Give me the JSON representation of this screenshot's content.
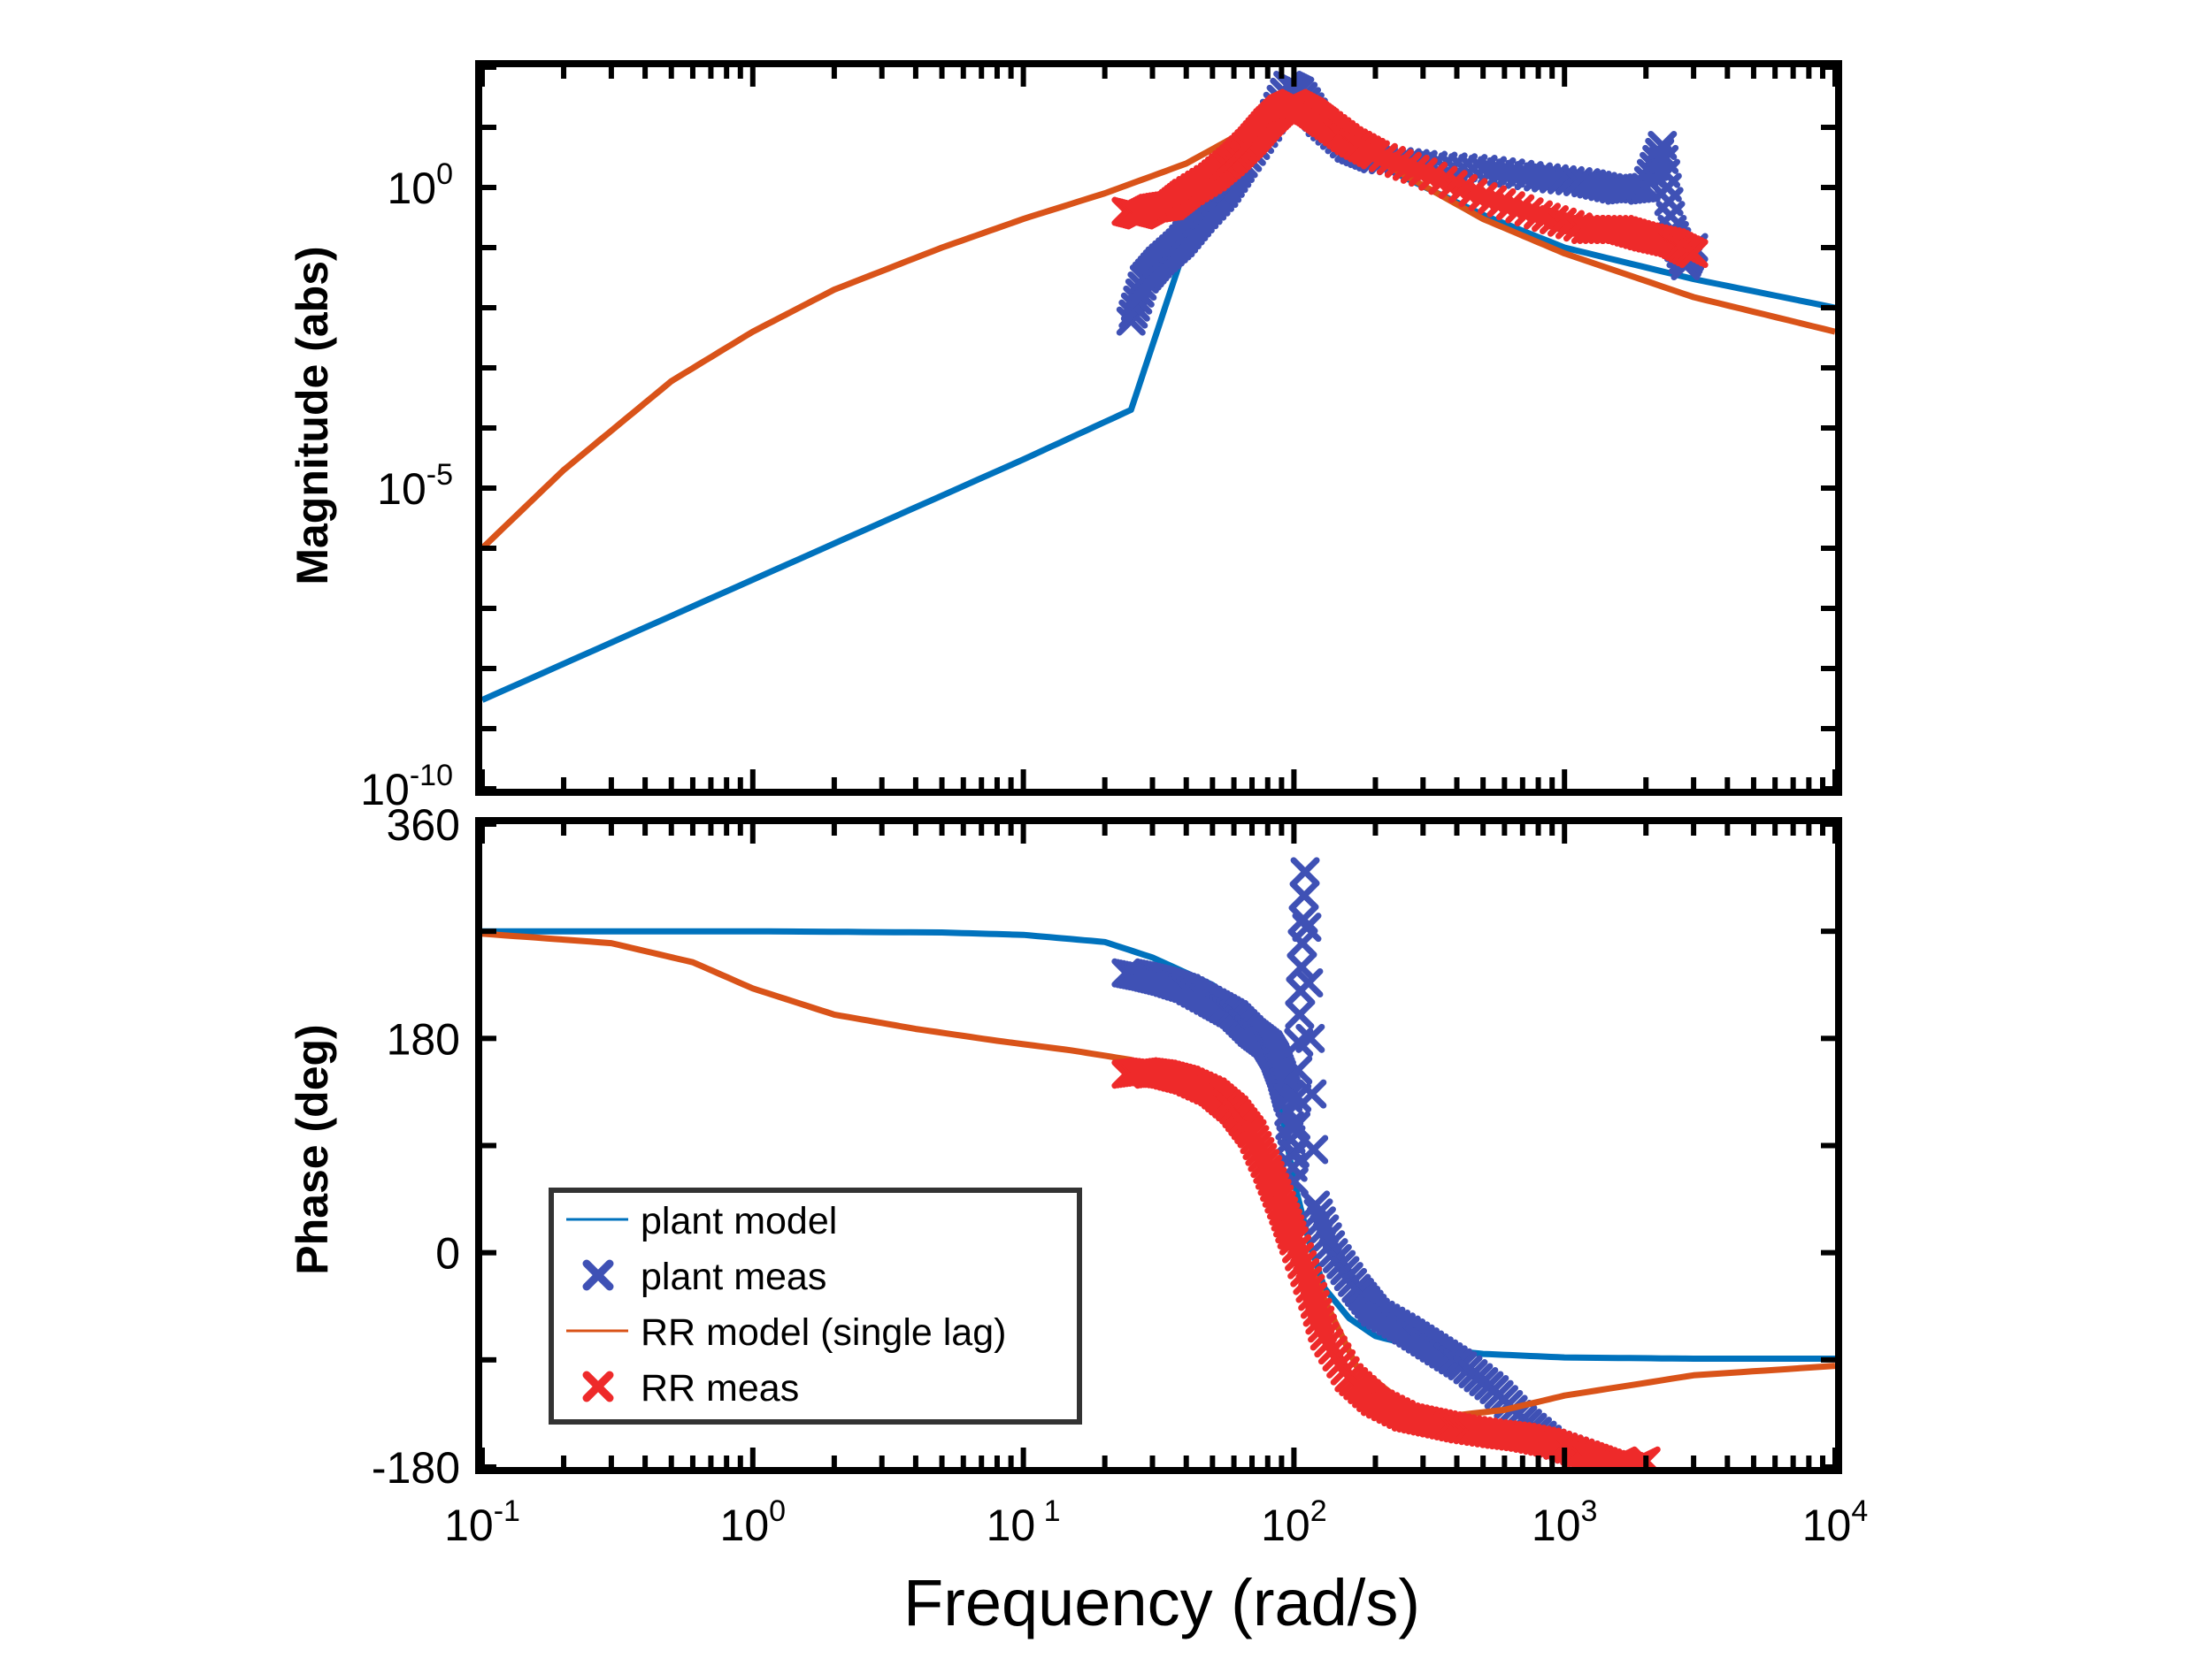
{
  "chart_data": [
    {
      "type": "line",
      "panel": "magnitude",
      "ylabel": "Magnitude (abs)",
      "yscale": "log",
      "xscale": "log",
      "xlim": [
        0.1,
        10000
      ],
      "ylim": [
        1e-10,
        100
      ],
      "yticks": [
        {
          "value": 1,
          "base": "10",
          "exp": "0"
        },
        {
          "value": 1e-05,
          "base": "10",
          "exp": "-5"
        },
        {
          "value": 1e-10,
          "base": "10",
          "exp": "-10"
        }
      ],
      "grid": false,
      "series": [
        {
          "name": "plant model",
          "kind": "line",
          "color": "#0072BD",
          "x": [
            0.1,
            1,
            10,
            25,
            50,
            80,
            100,
            130,
            200,
            500,
            1000,
            3000,
            10000
          ],
          "y": [
            3e-09,
            3e-07,
            3e-05,
            0.0002,
            2.4,
            15,
            30,
            12,
            2.5,
            0.35,
            0.1,
            0.03,
            0.01
          ]
        },
        {
          "name": "plant meas",
          "kind": "scatter",
          "color": "#3F51B5",
          "x": [
            25,
            28,
            32,
            38,
            45,
            55,
            65,
            80,
            95,
            105,
            125,
            160,
            200,
            300,
            500,
            800,
            1200,
            1600,
            2000,
            2300,
            2500,
            2800,
            3000
          ],
          "y": [
            0.006,
            0.03,
            0.06,
            0.12,
            0.3,
            0.8,
            2.5,
            10,
            50,
            40,
            12,
            4.5,
            3,
            2.4,
            2,
            1.5,
            1.2,
            0.9,
            1,
            5,
            0.2,
            0.05,
            0.1
          ]
        },
        {
          "name": "RR model (single lag)",
          "kind": "line",
          "color": "#D95319",
          "x": [
            0.1,
            0.2,
            0.5,
            1,
            2,
            5,
            10,
            20,
            40,
            70,
            100,
            130,
            200,
            500,
            1000,
            3000,
            10000
          ],
          "y": [
            1e-06,
            2e-05,
            0.0006,
            0.004,
            0.02,
            0.1,
            0.3,
            0.8,
            2.5,
            10,
            25,
            12,
            3,
            0.3,
            0.08,
            0.015,
            0.004
          ]
        },
        {
          "name": "RR meas",
          "kind": "scatter",
          "color": "#EE2A2A",
          "x": [
            24,
            27,
            30,
            35,
            40,
            50,
            60,
            70,
            80,
            90,
            100,
            115,
            130,
            160,
            200,
            300,
            500,
            800,
            1200,
            1600,
            2000,
            2500,
            3000
          ],
          "y": [
            0.4,
            0.35,
            0.45,
            0.5,
            0.8,
            1.5,
            3,
            6,
            12,
            20,
            25,
            18,
            12,
            6,
            3.5,
            1.8,
            0.7,
            0.35,
            0.2,
            0.2,
            0.15,
            0.12,
            0.08
          ]
        }
      ]
    },
    {
      "type": "line",
      "panel": "phase",
      "ylabel": "Phase (deg)",
      "xlabel": "Frequency  (rad/s)",
      "xscale": "log",
      "xlim": [
        0.1,
        10000
      ],
      "ylim": [
        -180,
        360
      ],
      "yticks": [
        360,
        180,
        0,
        -180
      ],
      "xticks": [
        {
          "value": 0.1,
          "base": "10",
          "exp": "-1"
        },
        {
          "value": 1,
          "base": "10",
          "exp": "0"
        },
        {
          "value": 10,
          "base": "10",
          "exp": " 1"
        },
        {
          "value": 100,
          "base": "10",
          "exp": "2"
        },
        {
          "value": 1000,
          "base": "10",
          "exp": "3"
        },
        {
          "value": 10000,
          "base": "10",
          "exp": "4"
        }
      ],
      "grid": false,
      "legend": {
        "placement": "lower-left"
      },
      "series": [
        {
          "name": "plant model",
          "kind": "line",
          "color": "#0072BD",
          "x": [
            0.1,
            1,
            5,
            10,
            20,
            30,
            50,
            70,
            85,
            100,
            115,
            130,
            160,
            200,
            300,
            500,
            1000,
            3000,
            10000
          ],
          "y": [
            270,
            270,
            269,
            267,
            261,
            248,
            225,
            200,
            150,
            60,
            5,
            -30,
            -55,
            -70,
            -80,
            -85,
            -88,
            -89,
            -89
          ]
        },
        {
          "name": "plant meas",
          "kind": "scatter",
          "color": "#3F51B5",
          "x": [
            24,
            28,
            33,
            40,
            50,
            60,
            70,
            80,
            85,
            90,
            95,
            100,
            105,
            110,
            120,
            140,
            170,
            200,
            260,
            330,
            420,
            550,
            700,
            900,
            1200
          ],
          "y": [
            235,
            232,
            228,
            222,
            210,
            200,
            185,
            175,
            165,
            150,
            130,
            60,
            200,
            320,
            40,
            0,
            -30,
            -50,
            -65,
            -80,
            -95,
            -115,
            -140,
            -160,
            -170
          ]
        },
        {
          "name": "RR model (single lag)",
          "kind": "line",
          "color": "#D95319",
          "x": [
            0.1,
            0.3,
            0.6,
            1,
            2,
            4,
            8,
            15,
            25,
            40,
            60,
            80,
            100,
            130,
            170,
            250,
            350,
            600,
            1000,
            3000,
            10000
          ],
          "y": [
            268,
            260,
            244,
            222,
            200,
            188,
            178,
            170,
            162,
            145,
            110,
            70,
            20,
            -40,
            -95,
            -125,
            -138,
            -132,
            -120,
            -103,
            -95
          ]
        },
        {
          "name": "RR meas",
          "kind": "scatter",
          "color": "#EE2A2A",
          "x": [
            24,
            28,
            33,
            40,
            50,
            60,
            70,
            80,
            90,
            100,
            115,
            130,
            160,
            200,
            260,
            330,
            420,
            550,
            700,
            900,
            1200,
            1500,
            1800,
            2000
          ],
          "y": [
            150,
            152,
            150,
            145,
            135,
            120,
            100,
            70,
            40,
            10,
            -30,
            -70,
            -105,
            -125,
            -138,
            -143,
            -148,
            -152,
            -155,
            -160,
            -170,
            -178,
            -180,
            -175
          ]
        }
      ]
    }
  ],
  "legend": {
    "entries": [
      {
        "name": "plant model",
        "kind": "line",
        "color": "#0072BD"
      },
      {
        "name": "plant meas",
        "kind": "marker",
        "color": "#3F51B5"
      },
      {
        "name": "RR model (single lag)",
        "kind": "line",
        "color": "#D95319"
      },
      {
        "name": "RR meas",
        "kind": "marker",
        "color": "#EE2A2A"
      }
    ]
  }
}
